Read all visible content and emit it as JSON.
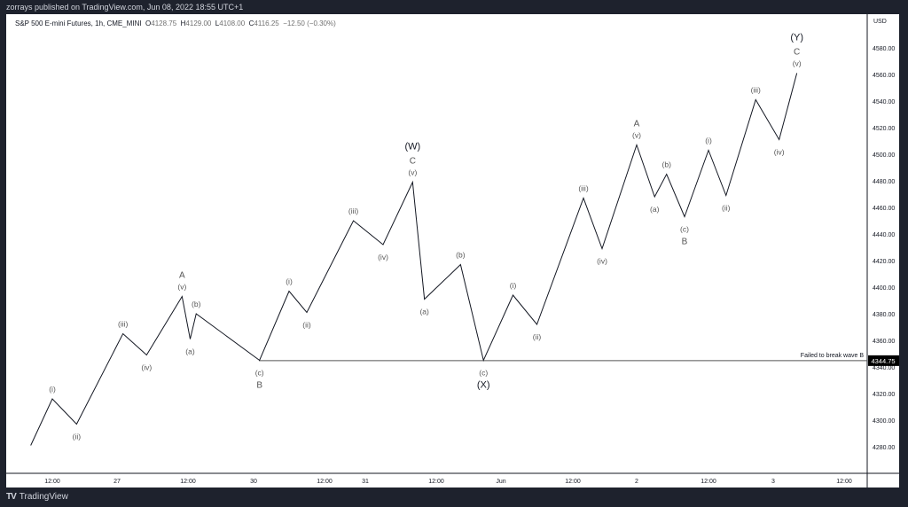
{
  "header": {
    "published": "zorrays published on TradingView.com, Jun 08, 2022 18:55 UTC+1"
  },
  "legend": {
    "symbol": "S&P 500 E-mini Futures, 1h, CME_MINI",
    "o_label": "O",
    "o": "4128.75",
    "h_label": "H",
    "h": "4129.00",
    "l_label": "L",
    "l": "4108.00",
    "c_label": "C",
    "c": "4116.25",
    "change": "−12.50 (−0.30%)"
  },
  "footer": {
    "brand": "TradingView",
    "logo": "TV"
  },
  "colors": {
    "line": "#131722",
    "label": "#555555",
    "axis_text": "#131722",
    "price_tag_bg": "#000000",
    "frame": "#1e222d"
  },
  "chart_data": {
    "type": "line",
    "currency": "USD",
    "ylim": [
      4265,
      4595
    ],
    "y_ticks": [
      4280,
      4300,
      4320,
      4340,
      4360,
      4380,
      4400,
      4420,
      4440,
      4460,
      4480,
      4500,
      4520,
      4540,
      4560,
      4580
    ],
    "x_ticks": [
      "12:00",
      "27",
      "12:00",
      "30",
      "12:00",
      "31",
      "12:00",
      "Jun",
      "12:00",
      "2",
      "12:00",
      "3",
      "12:00"
    ],
    "grid": false,
    "horizontal_line": {
      "price": 4344.75,
      "label": "4344.75",
      "annotation": "Failed to break wave B"
    },
    "points": [
      {
        "t": "05-26 08:00",
        "p": 4281,
        "labels": []
      },
      {
        "t": "05-26 12:00",
        "p": 4316,
        "labels": [
          "(i)"
        ]
      },
      {
        "t": "05-26 16:30",
        "p": 4297,
        "labels": [
          "(ii)"
        ]
      },
      {
        "t": "05-27 01:00",
        "p": 4365,
        "labels": [
          "(iii)"
        ]
      },
      {
        "t": "05-27 05:00",
        "p": 4349,
        "labels": [
          "(iv)"
        ]
      },
      {
        "t": "05-27 11:00",
        "p": 4393,
        "labels": [
          "A",
          "(v)"
        ]
      },
      {
        "t": "05-27 14:00",
        "p": 4361,
        "labels": [
          "(a)"
        ]
      },
      {
        "t": "05-27 19:30",
        "p": 4380,
        "labels": [
          "(b)"
        ]
      },
      {
        "t": "05-30 01:00",
        "p": 4345,
        "labels": [
          "(c)",
          "B"
        ]
      },
      {
        "t": "05-30 06:00",
        "p": 4397,
        "labels": [
          "(i)"
        ]
      },
      {
        "t": "05-30 09:00",
        "p": 4381,
        "labels": [
          "(ii)"
        ]
      },
      {
        "t": "05-30 20:30",
        "p": 4450,
        "labels": [
          "(iii)"
        ]
      },
      {
        "t": "05-31 03:00",
        "p": 4432,
        "labels": [
          "(iv)"
        ]
      },
      {
        "t": "05-31 08:00",
        "p": 4479,
        "labels": [
          "(W)",
          "C",
          "(v)"
        ]
      },
      {
        "t": "05-31 10:00",
        "p": 4391,
        "labels": [
          "(a)"
        ]
      },
      {
        "t": "05-31 16:30",
        "p": 4417,
        "labels": [
          "(b)"
        ]
      },
      {
        "t": "05-31 20:45",
        "p": 4345,
        "labels": [
          "(c)",
          "(X)"
        ]
      },
      {
        "t": "06-01 02:00",
        "p": 4394,
        "labels": [
          "(i)"
        ]
      },
      {
        "t": "06-01 06:00",
        "p": 4372,
        "labels": [
          "(ii)"
        ]
      },
      {
        "t": "06-01 14:00",
        "p": 4467,
        "labels": [
          "(iii)"
        ]
      },
      {
        "t": "06-01 17:30",
        "p": 4429,
        "labels": [
          "(iv)"
        ]
      },
      {
        "t": "06-02 00:00",
        "p": 4507,
        "labels": [
          "A",
          "(v)"
        ]
      },
      {
        "t": "06-02 03:00",
        "p": 4468,
        "labels": [
          "(a)"
        ]
      },
      {
        "t": "06-02 05:00",
        "p": 4485,
        "labels": [
          "(b)"
        ]
      },
      {
        "t": "06-02 08:00",
        "p": 4453,
        "labels": [
          "(c)",
          "B"
        ]
      },
      {
        "t": "06-02 12:00",
        "p": 4503,
        "labels": [
          "(i)"
        ]
      },
      {
        "t": "06-02 15:15",
        "p": 4469,
        "labels": [
          "(ii)"
        ]
      },
      {
        "t": "06-02 20:45",
        "p": 4541,
        "labels": [
          "(iii)"
        ]
      },
      {
        "t": "06-03 01:00",
        "p": 4511,
        "labels": [
          "(iv)"
        ]
      },
      {
        "t": "06-03 04:00",
        "p": 4561,
        "labels": [
          "(Y)",
          "C",
          "(v)"
        ]
      }
    ]
  }
}
